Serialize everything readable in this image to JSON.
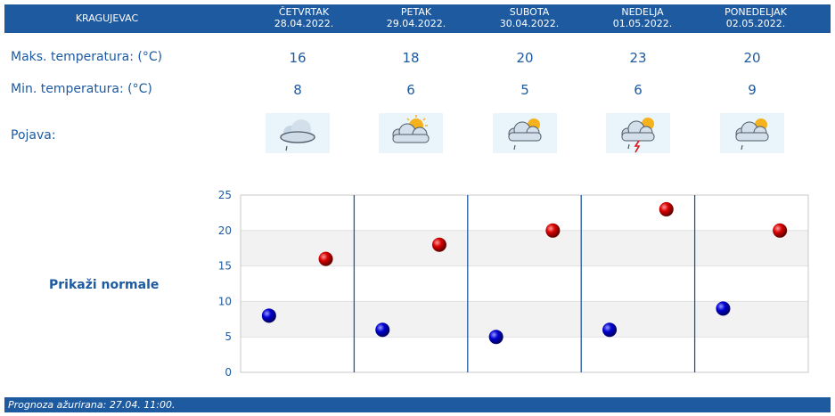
{
  "header": {
    "city": "KRAGUJEVAC",
    "days": [
      {
        "name": "ČETVRTAK",
        "date": "28.04.2022."
      },
      {
        "name": "PETAK",
        "date": "29.04.2022."
      },
      {
        "name": "SUBOTA",
        "date": "30.04.2022."
      },
      {
        "name": "NEDELJA",
        "date": "01.05.2022."
      },
      {
        "name": "PONEDELJAK",
        "date": "02.05.2022."
      }
    ]
  },
  "rows": {
    "max_label": "Maks. temperatura: (°C)",
    "min_label": "Min. temperatura: (°C)",
    "phenomenon_label": "Pojava:"
  },
  "icons": [
    "cloud-drizzle-icon",
    "sun-behind-cloud-icon",
    "partly-cloudy-drizzle-icon",
    "thunderstorm-sun-icon",
    "partly-cloudy-drizzle-icon"
  ],
  "normals_link": "Prikaži normale",
  "footer": "Prognoza ažurirana:  27.04.  11:00.",
  "colors": {
    "header_bg": "#1e5aa0",
    "max_point": "#cc0000",
    "min_point": "#0000cc",
    "divider": "#1e5aa0"
  },
  "chart_data": {
    "type": "scatter",
    "ylim": [
      0,
      25
    ],
    "yticks": [
      "0",
      "5",
      "10",
      "15",
      "20",
      "25"
    ],
    "series": [
      {
        "role": "max",
        "values": [
          16,
          18,
          20,
          23,
          20
        ],
        "color": "#cc0000"
      },
      {
        "role": "min",
        "values": [
          8,
          6,
          5,
          6,
          9
        ],
        "color": "#0000cc"
      }
    ],
    "grid": true,
    "legend": "none"
  }
}
